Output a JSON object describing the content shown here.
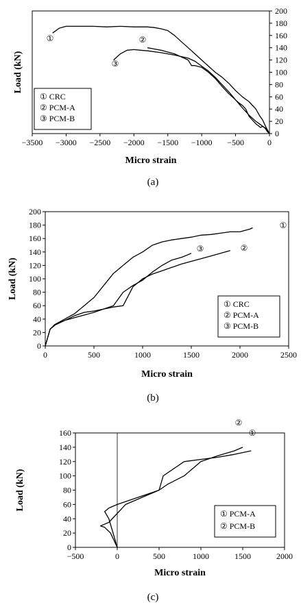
{
  "chart_data": [
    {
      "id": "a",
      "type": "line",
      "caption": "(a)",
      "xlabel": "Micro strain",
      "ylabel": "Load (kN)",
      "xlim": [
        -3500,
        0
      ],
      "ylim": [
        0,
        200
      ],
      "xticks": [
        -3500,
        -3000,
        -2500,
        -2000,
        -1500,
        -1000,
        -500,
        0
      ],
      "yticks": [
        0,
        20,
        40,
        60,
        80,
        100,
        120,
        140,
        160,
        180,
        200
      ],
      "xtick_labels": [
        "−3500",
        "−3000",
        "−2500",
        "−2000",
        "−1500",
        "−1000",
        "−500",
        "0"
      ],
      "legend": [
        "① CRC",
        "② PCM-A",
        "③ PCM-B"
      ],
      "legend_position": "bottom-left",
      "series": [
        {
          "marker": "①",
          "x": [
            0,
            -50,
            -100,
            -150,
            -200,
            -300,
            -400,
            -500,
            -600,
            -700,
            -800,
            -900,
            -1000,
            -1100,
            -1200,
            -1300,
            -1400,
            -1500,
            -1600,
            -1700,
            -1800,
            -1900,
            -2000,
            -2200,
            -2400,
            -2600,
            -2800,
            -3000,
            -3100,
            -3200
          ],
          "y": [
            0,
            10,
            22,
            30,
            40,
            52,
            60,
            70,
            82,
            92,
            100,
            110,
            120,
            130,
            140,
            150,
            160,
            168,
            171,
            173,
            174,
            174,
            174,
            175,
            174,
            175,
            175,
            175,
            172,
            164
          ]
        },
        {
          "marker": "②",
          "x": [
            0,
            -30,
            -60,
            -100,
            -130,
            -200,
            -300,
            -350,
            -400,
            -450,
            -500,
            -600,
            -700,
            -800,
            -900,
            -1000,
            -1100,
            -1150,
            -1200,
            -1300,
            -1400,
            -1500,
            -1600,
            -1700,
            -1800
          ],
          "y": [
            0,
            3,
            8,
            12,
            10,
            16,
            28,
            40,
            46,
            50,
            55,
            65,
            77,
            90,
            100,
            108,
            111,
            111,
            120,
            125,
            130,
            133,
            136,
            138,
            140
          ]
        },
        {
          "marker": "③",
          "x": [
            0,
            -50,
            -100,
            -150,
            -200,
            -300,
            -400,
            -500,
            -600,
            -700,
            -800,
            -900,
            -1000,
            -1100,
            -1200,
            -1400,
            -1600,
            -1800,
            -1900,
            -2000,
            -2100,
            -2200,
            -2300
          ],
          "y": [
            0,
            8,
            12,
            16,
            20,
            30,
            42,
            55,
            68,
            80,
            92,
            102,
            110,
            118,
            123,
            128,
            132,
            135,
            136,
            137,
            136,
            130,
            120
          ]
        }
      ]
    },
    {
      "id": "b",
      "type": "line",
      "caption": "(b)",
      "xlabel": "Micro strain",
      "ylabel": "Load (kN)",
      "xlim": [
        0,
        2500
      ],
      "ylim": [
        0,
        200
      ],
      "xticks": [
        0,
        500,
        1000,
        1500,
        2000,
        2500
      ],
      "yticks": [
        0,
        20,
        40,
        60,
        80,
        100,
        120,
        140,
        160,
        180,
        200
      ],
      "xtick_labels": [
        "0",
        "500",
        "1000",
        "1500",
        "2000",
        "2500"
      ],
      "legend": [
        "① CRC",
        "② PCM-A",
        "③ PCM-B"
      ],
      "legend_position": "bottom-right",
      "series": [
        {
          "marker": "①",
          "x": [
            0,
            50,
            100,
            200,
            300,
            400,
            500,
            600,
            700,
            800,
            900,
            1000,
            1100,
            1200,
            1300,
            1400,
            1500,
            1600,
            1700,
            1800,
            1900,
            2000,
            2050,
            2100,
            2130
          ],
          "y": [
            0,
            25,
            32,
            40,
            48,
            60,
            72,
            90,
            108,
            120,
            132,
            140,
            150,
            155,
            158,
            160,
            162,
            165,
            166,
            168,
            170,
            170,
            172,
            174,
            176
          ]
        },
        {
          "marker": "②",
          "x": [
            0,
            50,
            100,
            200,
            300,
            400,
            500,
            600,
            700,
            800,
            900,
            1000,
            1100,
            1200,
            1300,
            1400,
            1500,
            1600,
            1700,
            1800,
            1900
          ],
          "y": [
            0,
            25,
            31,
            38,
            45,
            50,
            52,
            55,
            58,
            60,
            88,
            100,
            107,
            112,
            117,
            122,
            126,
            130,
            134,
            138,
            142
          ]
        },
        {
          "marker": "③",
          "x": [
            0,
            50,
            100,
            200,
            300,
            400,
            500,
            600,
            700,
            800,
            900,
            1000,
            1100,
            1200,
            1300,
            1400,
            1500
          ],
          "y": [
            0,
            25,
            32,
            38,
            42,
            46,
            50,
            55,
            60,
            80,
            90,
            98,
            110,
            120,
            128,
            132,
            138
          ]
        }
      ]
    },
    {
      "id": "c",
      "type": "line",
      "caption": "(c)",
      "xlabel": "Micro strain",
      "ylabel": "Load (kN)",
      "xlim": [
        -500,
        2000
      ],
      "ylim": [
        0,
        160
      ],
      "xticks": [
        -500,
        0,
        500,
        1000,
        1500,
        2000
      ],
      "yticks": [
        0,
        20,
        40,
        60,
        80,
        100,
        120,
        140,
        160
      ],
      "xtick_labels": [
        "−500",
        "0",
        "500",
        "1000",
        "1500",
        "2000"
      ],
      "legend": [
        "① PCM-A",
        "② PCM-B"
      ],
      "legend_position": "bottom-right",
      "series": [
        {
          "marker": "①",
          "x": [
            0,
            -80,
            -150,
            -200,
            -100,
            100,
            300,
            500,
            550,
            800,
            1000,
            1200,
            1400,
            1600
          ],
          "y": [
            0,
            20,
            28,
            30,
            35,
            60,
            70,
            80,
            100,
            120,
            123,
            126,
            130,
            135
          ]
        },
        {
          "marker": "②",
          "x": [
            0,
            -50,
            -100,
            -150,
            -100,
            0,
            200,
            400,
            500,
            600,
            800,
            1000,
            1200,
            1400,
            1500
          ],
          "y": [
            0,
            20,
            40,
            50,
            55,
            60,
            68,
            76,
            80,
            88,
            100,
            120,
            128,
            135,
            140
          ]
        }
      ]
    }
  ]
}
